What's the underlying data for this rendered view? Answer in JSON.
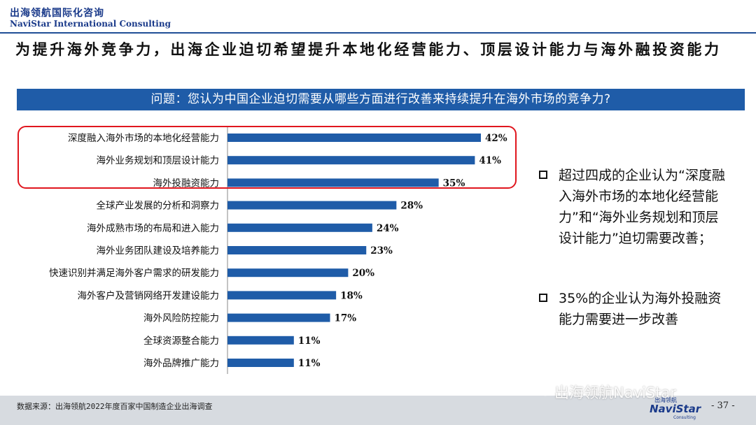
{
  "header": {
    "brand_cn": "出海领航国际化咨询",
    "brand_en": "NaviStar International Consulting",
    "title": "为提升海外竞争力，出海企业迫切希望提升本地化经营能力、顶层设计能力与海外融投资能力"
  },
  "question": "问题：您认为中国企业迫切需要从哪些方面进行改善来持续提升在海外市场的竞争力?",
  "chart_data": {
    "type": "bar",
    "orientation": "horizontal",
    "categories": [
      "深度融入海外市场的本地化经营能力",
      "海外业务规划和顶层设计能力",
      "海外投融资能力",
      "全球产业发展的分析和洞察力",
      "海外成熟市场的布局和进入能力",
      "海外业务团队建设及培养能力",
      "快速识别并满足海外客户需求的研发能力",
      "海外客户及营销网络开发建设能力",
      "海外风险防控能力",
      "全球资源整合能力",
      "海外品牌推广能力"
    ],
    "values": [
      42,
      41,
      35,
      28,
      24,
      23,
      20,
      18,
      17,
      11,
      11
    ],
    "value_labels": [
      "42%",
      "41%",
      "35%",
      "28%",
      "24%",
      "23%",
      "20%",
      "18%",
      "17%",
      "11%",
      "11%"
    ],
    "unit": "%",
    "xlim": [
      0,
      42
    ],
    "highlighted_top_n": 3,
    "bar_color": "#1f5ca8",
    "highlight_color": "#e0161e",
    "grid": false,
    "legend": "none"
  },
  "bullets": [
    "超过四成的企业认为“深度融入海外市场的本地化经营能力”和“海外业务规划和顶层设计能力”迫切需要改善；",
    "35%的企业认为海外投融资能力需要进一步改善"
  ],
  "footer": {
    "source": "数据来源：出海领航2022年度百家中国制造企业出海调查",
    "watermark": "出海领航NaviStar",
    "logo_cn": "出海领航",
    "logo_en": "NaviStar",
    "logo_sub": "Consulting",
    "page_number": "- 37 -"
  },
  "colors": {
    "accent_blue": "#1f5ca8",
    "brand_navy": "#1a3a8a",
    "highlight_red": "#e0161e",
    "footer_gray": "#d7dbe0"
  }
}
